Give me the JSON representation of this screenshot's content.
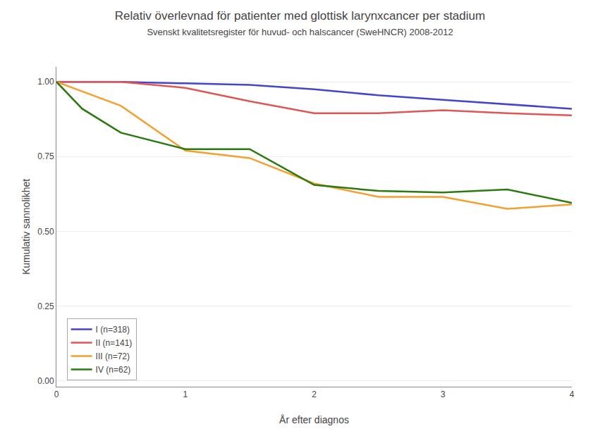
{
  "chart_data": {
    "type": "line",
    "title": "Relativ överlevnad för patienter med glottisk larynxcancer per stadium",
    "subtitle": "Svenskt kvalitetsregister för huvud- och halscancer (SweHNCR) 2008-2012",
    "xlabel": "År efter diagnos",
    "ylabel": "Kumulativ sannolikhet",
    "xlim": [
      0,
      4
    ],
    "ylim": [
      -0.02,
      1.05
    ],
    "xticks": [
      0,
      1,
      2,
      3,
      4
    ],
    "yticks": [
      {
        "value": 0.0,
        "label": "0.00"
      },
      0.25,
      {
        "value": 0.5,
        "label": "0.50"
      },
      0.75,
      {
        "value": 1.0,
        "label": "1.00"
      }
    ],
    "grid": "y",
    "legend": "lower left",
    "series": [
      {
        "name": "I (n=318)",
        "color": "#4444CC",
        "x": [
          0,
          0.5,
          1.0,
          1.5,
          2.0,
          2.5,
          3.0,
          3.5,
          4.0
        ],
        "values": [
          1.0,
          1.0,
          0.995,
          0.99,
          0.975,
          0.955,
          0.94,
          0.925,
          0.91
        ]
      },
      {
        "name": "II (n=141)",
        "color": "#E05555",
        "x": [
          0,
          0.5,
          1.0,
          1.5,
          2.0,
          2.5,
          3.0,
          3.5,
          4.0
        ],
        "values": [
          1.0,
          1.0,
          0.98,
          0.935,
          0.895,
          0.895,
          0.905,
          0.895,
          0.888
        ]
      },
      {
        "name": "III (n=72)",
        "color": "#F4A030",
        "x": [
          0,
          0.5,
          1.0,
          1.5,
          2.0,
          2.5,
          3.0,
          3.5,
          4.0
        ],
        "values": [
          1.0,
          0.92,
          0.77,
          0.745,
          0.66,
          0.615,
          0.615,
          0.575,
          0.59
        ]
      },
      {
        "name": "IV (n=62)",
        "color": "#2A7A10",
        "x": [
          0,
          0.2,
          0.5,
          1.0,
          1.5,
          2.0,
          2.5,
          3.0,
          3.5,
          4.0
        ],
        "values": [
          1.0,
          0.91,
          0.83,
          0.775,
          0.775,
          0.655,
          0.635,
          0.63,
          0.64,
          0.595
        ]
      }
    ]
  }
}
